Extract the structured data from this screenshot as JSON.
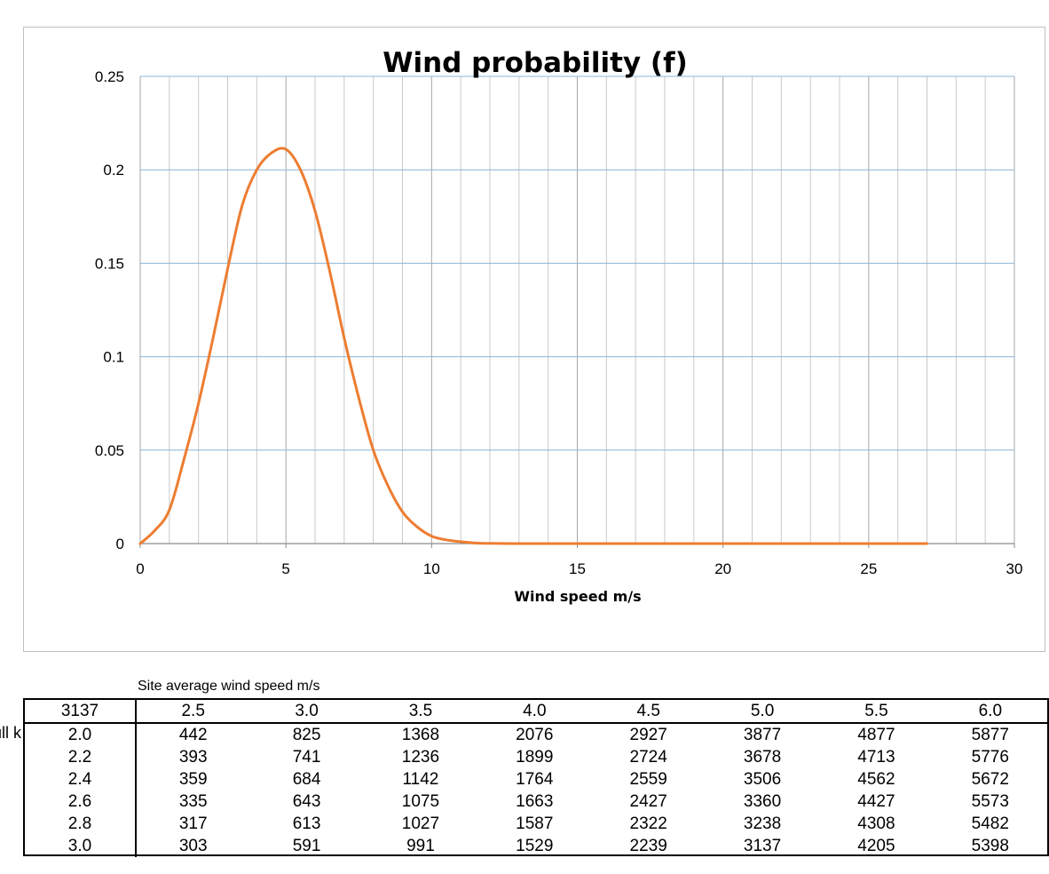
{
  "chart_data": {
    "type": "line",
    "title": "Wind probability (f)",
    "xlabel": "Wind speed m/s",
    "ylabel": "",
    "xlim": [
      0,
      30
    ],
    "ylim": [
      0,
      0.25
    ],
    "x_ticks": [
      "0",
      "5",
      "10",
      "15",
      "20",
      "25",
      "30"
    ],
    "y_ticks": [
      "0",
      "0.05",
      "0.1",
      "0.15",
      "0.2",
      "0.25"
    ],
    "grid": true,
    "legend": "none",
    "series": [
      {
        "color": "#ED7D31",
        "x": [
          0,
          0.5,
          1,
          1.5,
          2,
          2.5,
          3,
          3.5,
          4,
          4.5,
          5,
          5.5,
          6,
          6.5,
          7,
          7.5,
          8,
          8.5,
          9,
          9.5,
          10,
          10.5,
          11,
          11.5,
          12,
          13,
          14,
          15,
          16,
          18,
          20,
          22,
          24,
          26,
          27
        ],
        "y": [
          0,
          0.007,
          0.018,
          0.045,
          0.075,
          0.11,
          0.147,
          0.181,
          0.2,
          0.209,
          0.211,
          0.2,
          0.178,
          0.146,
          0.11,
          0.078,
          0.05,
          0.031,
          0.017,
          0.009,
          0.004,
          0.002,
          0.001,
          0.0003,
          0.0001,
          0,
          0,
          0,
          0,
          0,
          0,
          0,
          0,
          0,
          0
        ]
      }
    ]
  },
  "table": {
    "caption": "Site average wind speed m/s",
    "row_header_label": "Weibull k",
    "corner": "3137",
    "columns": [
      "2.5",
      "3.0",
      "3.5",
      "4.0",
      "4.5",
      "5.0",
      "5.5",
      "6.0"
    ],
    "rows": [
      {
        "k": "2.0",
        "values": [
          "442",
          "825",
          "1368",
          "2076",
          "2927",
          "3877",
          "4877",
          "5877"
        ]
      },
      {
        "k": "2.2",
        "values": [
          "393",
          "741",
          "1236",
          "1899",
          "2724",
          "3678",
          "4713",
          "5776"
        ]
      },
      {
        "k": "2.4",
        "values": [
          "359",
          "684",
          "1142",
          "1764",
          "2559",
          "3506",
          "4562",
          "5672"
        ]
      },
      {
        "k": "2.6",
        "values": [
          "335",
          "643",
          "1075",
          "1663",
          "2427",
          "3360",
          "4427",
          "5573"
        ]
      },
      {
        "k": "2.8",
        "values": [
          "317",
          "613",
          "1027",
          "1587",
          "2322",
          "3238",
          "4308",
          "5482"
        ]
      },
      {
        "k": "3.0",
        "values": [
          "303",
          "591",
          "991",
          "1529",
          "2239",
          "3137",
          "4205",
          "5398"
        ]
      }
    ]
  }
}
